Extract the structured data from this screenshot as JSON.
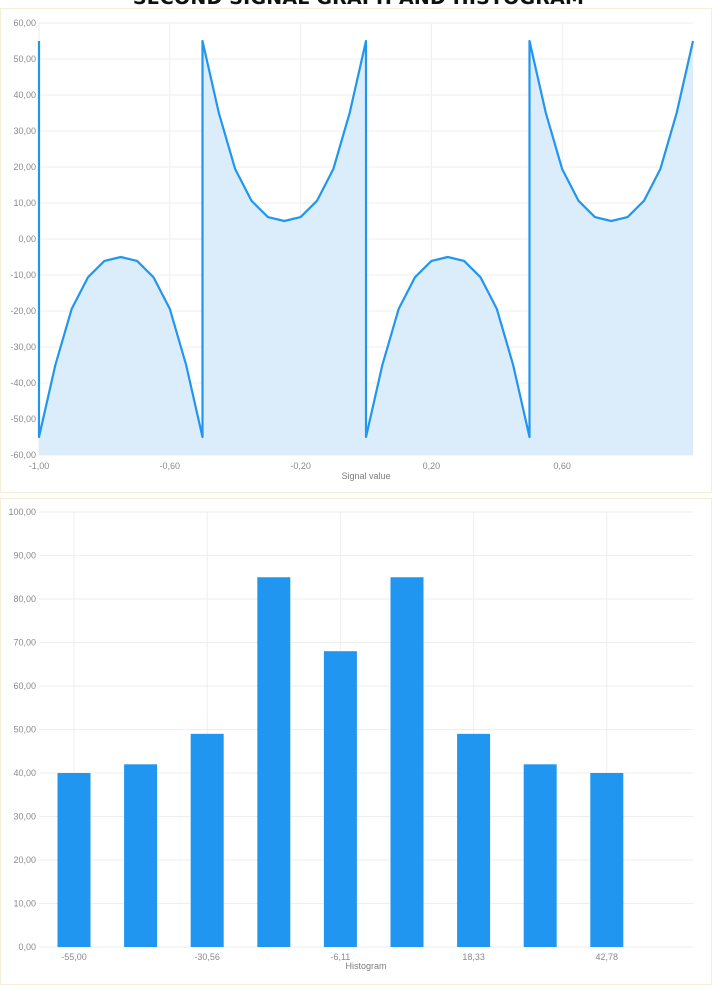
{
  "page": {
    "title": "SECOND SIGNAL GRAPH AND HISTOGRAM"
  },
  "colors": {
    "accent": "#2196f0",
    "area_fill": "#dbedfb",
    "grid": "#eeeeee"
  },
  "chart_data": [
    {
      "type": "area",
      "title": "",
      "xlabel": "Signal value",
      "ylabel": "",
      "xlim": [
        -1.0,
        1.0
      ],
      "ylim": [
        -60,
        60
      ],
      "x_ticks": [
        "-1,00",
        "-0,60",
        "-0,20",
        "0,20",
        "0,60"
      ],
      "x_tick_values": [
        -1.0,
        -0.6,
        -0.2,
        0.2,
        0.6
      ],
      "y_ticks": [
        "60,00",
        "50,00",
        "40,00",
        "30,00",
        "20,00",
        "10,00",
        "0,00",
        "-10,00",
        "-20,00",
        "-30,00",
        "-40,00",
        "-50,00",
        "-60,00"
      ],
      "y_tick_values": [
        60,
        50,
        40,
        30,
        20,
        10,
        0,
        -10,
        -20,
        -30,
        -40,
        -50,
        -60
      ],
      "grid": true,
      "series": [
        {
          "x": [
            -1.0,
            -1.0,
            -0.95,
            -0.9,
            -0.85,
            -0.8,
            -0.75,
            -0.7,
            -0.65,
            -0.6,
            -0.55,
            -0.5,
            -0.5,
            -0.45,
            -0.4,
            -0.35,
            -0.3,
            -0.25,
            -0.2,
            -0.15,
            -0.1,
            -0.05,
            0.0,
            0.0,
            0.05,
            0.1,
            0.15,
            0.2,
            0.25,
            0.3,
            0.35,
            0.4,
            0.45,
            0.5,
            0.5,
            0.55,
            0.6,
            0.65,
            0.7,
            0.75,
            0.8,
            0.85,
            0.9,
            0.95,
            1.0
          ],
          "values": [
            55.0,
            -55.0,
            -35.0,
            -19.4,
            -10.6,
            -6.1,
            -5.0,
            -6.1,
            -10.6,
            -19.4,
            -35.0,
            -55.0,
            55.0,
            35.0,
            19.4,
            10.6,
            6.1,
            5.0,
            6.1,
            10.6,
            19.4,
            35.0,
            55.0,
            -55.0,
            -35.0,
            -19.4,
            -10.6,
            -6.1,
            -5.0,
            -6.1,
            -10.6,
            -19.4,
            -35.0,
            -55.0,
            55.0,
            35.0,
            19.4,
            10.6,
            6.1,
            5.0,
            6.1,
            10.6,
            19.4,
            35.0,
            55.0
          ]
        }
      ]
    },
    {
      "type": "bar",
      "title": "",
      "xlabel": "Histogram",
      "ylabel": "",
      "ylim": [
        0,
        100
      ],
      "categories": [
        "-55,00",
        "",
        "-30,56",
        "",
        "-6,11",
        "",
        "18,33",
        "",
        "42,78"
      ],
      "values": [
        40,
        42,
        49,
        85,
        68,
        85,
        49,
        42,
        40
      ],
      "y_ticks": [
        "100,00",
        "90,00",
        "80,00",
        "70,00",
        "60,00",
        "50,00",
        "40,00",
        "30,00",
        "20,00",
        "10,00",
        "0,00"
      ],
      "y_tick_values": [
        100,
        90,
        80,
        70,
        60,
        50,
        40,
        30,
        20,
        10,
        0
      ],
      "grid": true
    }
  ]
}
